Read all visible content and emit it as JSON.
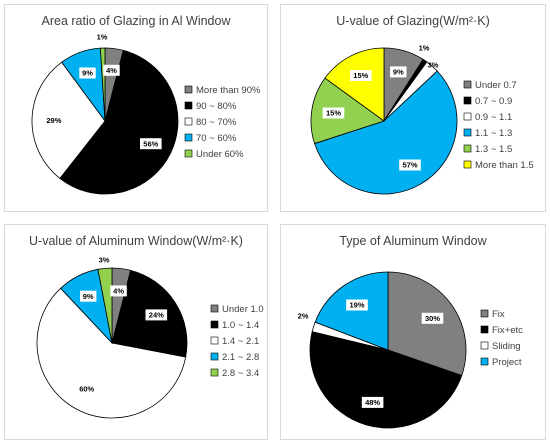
{
  "chart_data": [
    {
      "type": "pie",
      "title": "Area ratio of Glazing in Al Window",
      "legend_position": "right",
      "slices": [
        {
          "name": "More than 90%",
          "value": 4,
          "label": "4%",
          "color": "#808080"
        },
        {
          "name": "90 ~ 80%",
          "value": 56,
          "label": "56%",
          "color": "#000000"
        },
        {
          "name": "80 ~ 70%",
          "value": 29,
          "label": "29%",
          "color": "#ffffff"
        },
        {
          "name": "70 ~ 60%",
          "value": 9,
          "label": "9%",
          "color": "#00b0f0"
        },
        {
          "name": "Under 60%",
          "value": 1,
          "label": "1%",
          "color": "#92d050"
        }
      ]
    },
    {
      "type": "pie",
      "title": "U-value of Glazing(W/m²·K)",
      "legend_position": "right",
      "slices": [
        {
          "name": "Under 0.7",
          "value": 9,
          "label": "9%",
          "color": "#808080"
        },
        {
          "name": "0.7 ~ 0.9",
          "value": 1,
          "label": "1%",
          "color": "#000000"
        },
        {
          "name": "0.9 ~ 1.1",
          "value": 3,
          "label": "3%",
          "color": "#ffffff"
        },
        {
          "name": "1.1 ~ 1.3",
          "value": 57,
          "label": "57%",
          "color": "#00b0f0"
        },
        {
          "name": "1.3 ~ 1.5",
          "value": 15,
          "label": "15%",
          "color": "#92d050"
        },
        {
          "name": "More than 1.5",
          "value": 15,
          "label": "15%",
          "color": "#ffff00"
        }
      ]
    },
    {
      "type": "pie",
      "title": "U-value of Aluminum Window(W/m²·K)",
      "legend_position": "right",
      "slices": [
        {
          "name": "Under 1.0",
          "value": 4,
          "label": "4%",
          "color": "#808080"
        },
        {
          "name": "1.0 ~ 1.4",
          "value": 24,
          "label": "24%",
          "color": "#000000"
        },
        {
          "name": "1.4 ~ 2.1",
          "value": 60,
          "label": "60%",
          "color": "#ffffff"
        },
        {
          "name": "2.1 ~ 2.8",
          "value": 9,
          "label": "9%",
          "color": "#00b0f0"
        },
        {
          "name": "2.8 ~ 3.4",
          "value": 3,
          "label": "3%",
          "color": "#92d050"
        }
      ]
    },
    {
      "type": "pie",
      "title": "Type of Aluminum Window",
      "legend_position": "right",
      "slices": [
        {
          "name": "Fix",
          "value": 30,
          "label": "30%",
          "color": "#808080"
        },
        {
          "name": "Fix+etc",
          "value": 48,
          "label": "48%",
          "color": "#000000"
        },
        {
          "name": "Sliding",
          "value": 2,
          "label": "2%",
          "color": "#ffffff"
        },
        {
          "name": "Project",
          "value": 19,
          "label": "19%",
          "color": "#00b0f0"
        }
      ]
    }
  ]
}
